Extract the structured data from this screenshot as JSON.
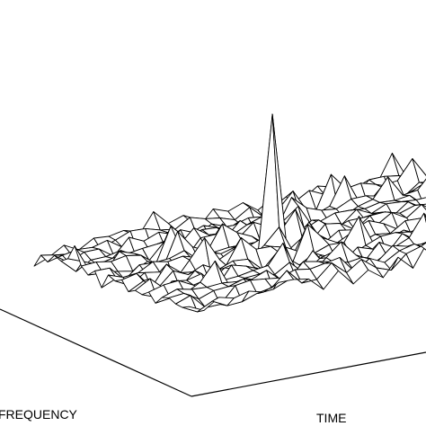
{
  "chart_data": {
    "type": "surface",
    "title": "",
    "xlabel": "TIME",
    "ylabel": "FREQUENCY",
    "zlabel": "",
    "grid": false,
    "legend": "none",
    "colors": {
      "line": "#000000",
      "background": "#ffffff"
    },
    "surface": {
      "rows": 24,
      "cols": 26,
      "noise_level": 0.2,
      "peak": {
        "time_index": 11,
        "frequency_index": 11,
        "value": 1.0
      }
    }
  }
}
